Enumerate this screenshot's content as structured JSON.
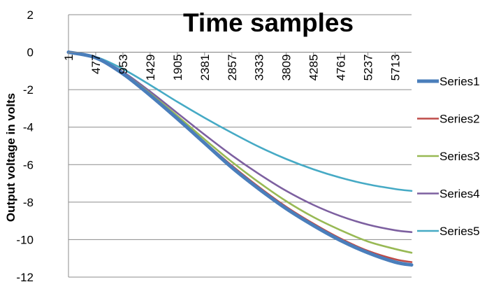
{
  "chart_data": {
    "type": "line",
    "title": "Time samples",
    "xlabel": "",
    "ylabel": "Output voltage in volts",
    "x_tick_labels": [
      "1",
      "477",
      "953",
      "1429",
      "1905",
      "2381",
      "2857",
      "3333",
      "3809",
      "4285",
      "4761",
      "5237",
      "5713"
    ],
    "xlim": [
      1,
      6000
    ],
    "ylim": [
      -12,
      2
    ],
    "y_ticks": [
      2,
      0,
      -2,
      -4,
      -6,
      -8,
      -10,
      -12
    ],
    "grid": "horizontal",
    "legend_position": "right",
    "series": [
      {
        "name": "Series1",
        "color": "#4a7ebb",
        "x": [
          1,
          477,
          953,
          1429,
          1905,
          2381,
          2857,
          3333,
          3809,
          4285,
          4761,
          5237,
          5713,
          6000
        ],
        "values": [
          0,
          -0.3,
          -1.15,
          -2.3,
          -3.55,
          -4.85,
          -6.15,
          -7.3,
          -8.35,
          -9.25,
          -10.05,
          -10.7,
          -11.2,
          -11.35
        ]
      },
      {
        "name": "Series2",
        "color": "#be4b48",
        "x": [
          1,
          477,
          953,
          1429,
          1905,
          2381,
          2857,
          3333,
          3809,
          4285,
          4761,
          5237,
          5713,
          6000
        ],
        "values": [
          0,
          -0.3,
          -1.15,
          -2.25,
          -3.5,
          -4.8,
          -6.05,
          -7.2,
          -8.25,
          -9.15,
          -9.95,
          -10.6,
          -11.05,
          -11.2
        ]
      },
      {
        "name": "Series3",
        "color": "#98b954",
        "x": [
          1,
          477,
          953,
          1429,
          1905,
          2381,
          2857,
          3333,
          3809,
          4285,
          4761,
          5237,
          5713,
          6000
        ],
        "values": [
          0,
          -0.3,
          -1.1,
          -2.2,
          -3.4,
          -4.65,
          -5.85,
          -6.95,
          -7.95,
          -8.8,
          -9.5,
          -10.1,
          -10.5,
          -10.7
        ]
      },
      {
        "name": "Series4",
        "color": "#7d60a0",
        "x": [
          1,
          477,
          953,
          1429,
          1905,
          2381,
          2857,
          3333,
          3809,
          4285,
          4761,
          5237,
          5713,
          6000
        ],
        "values": [
          0,
          -0.3,
          -1.05,
          -2.1,
          -3.25,
          -4.4,
          -5.5,
          -6.5,
          -7.4,
          -8.15,
          -8.75,
          -9.2,
          -9.5,
          -9.6
        ]
      },
      {
        "name": "Series5",
        "color": "#46aac5",
        "x": [
          1,
          477,
          953,
          1429,
          1905,
          2381,
          2857,
          3333,
          3809,
          4285,
          4761,
          5237,
          5713,
          6000
        ],
        "values": [
          0,
          -0.25,
          -0.9,
          -1.75,
          -2.65,
          -3.5,
          -4.3,
          -5.05,
          -5.7,
          -6.25,
          -6.7,
          -7.05,
          -7.3,
          -7.4
        ]
      }
    ]
  }
}
